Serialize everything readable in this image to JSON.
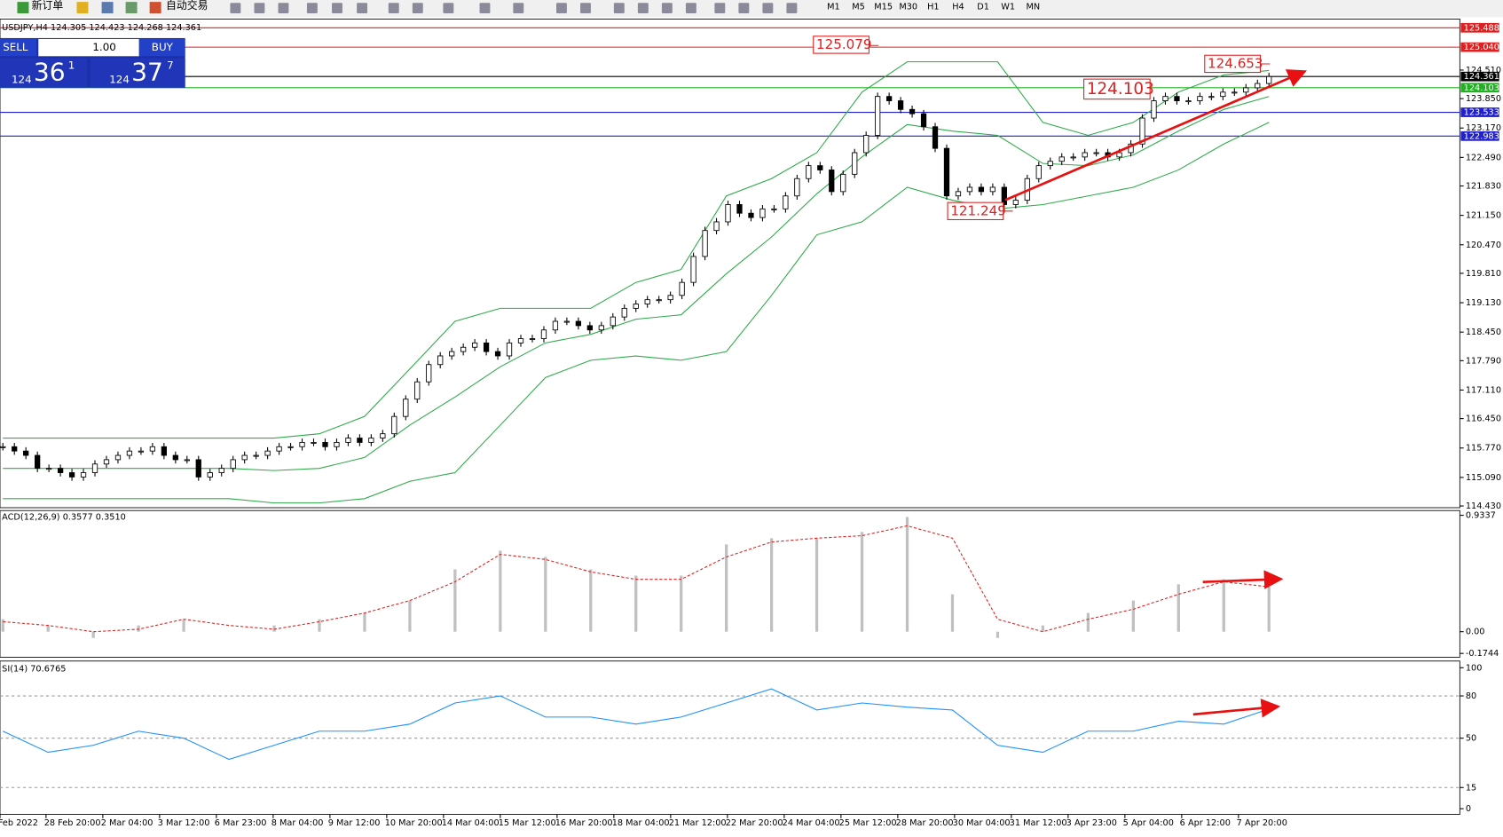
{
  "toolbar": {
    "new_order": "新订单",
    "auto_trading": "自动交易",
    "timeframes": [
      "M1",
      "M5",
      "M15",
      "M30",
      "H1",
      "H4",
      "D1",
      "W1",
      "MN"
    ]
  },
  "trade_panel": {
    "sell": "SELL",
    "buy": "BUY",
    "lots": "1.00",
    "bid": {
      "big": "124",
      "main": "36",
      "small": "1"
    },
    "ask": {
      "big": "124",
      "main": "37",
      "small": "7"
    }
  },
  "chart_data": [
    {
      "type": "candlestick",
      "title": "USDJPY,H4 124.305 124.423 124.268 124.361",
      "values": [
        115.8,
        115.7,
        115.6,
        115.3,
        115.3,
        115.2,
        115.1,
        115.2,
        115.4,
        115.5,
        115.6,
        115.7,
        115.7,
        115.8,
        115.6,
        115.5,
        115.5,
        115.1,
        115.2,
        115.3,
        115.5,
        115.6,
        115.6,
        115.7,
        115.8,
        115.8,
        115.9,
        115.9,
        115.8,
        115.9,
        116.0,
        115.9,
        116.0,
        116.1,
        116.5,
        116.9,
        117.3,
        117.7,
        117.9,
        118.0,
        118.1,
        118.2,
        118.0,
        117.9,
        118.2,
        118.3,
        118.3,
        118.5,
        118.7,
        118.7,
        118.6,
        118.5,
        118.6,
        118.8,
        119.0,
        119.1,
        119.2,
        119.2,
        119.3,
        119.6,
        120.2,
        120.8,
        121.0,
        121.4,
        121.2,
        121.1,
        121.3,
        121.3,
        121.6,
        122.0,
        122.3,
        122.2,
        121.7,
        122.1,
        122.6,
        123.0,
        123.9,
        123.8,
        123.6,
        123.5,
        123.2,
        122.7,
        121.6,
        121.7,
        121.8,
        121.7,
        121.8,
        121.4,
        121.5,
        122.0,
        122.3,
        122.4,
        122.5,
        122.5,
        122.6,
        122.6,
        122.5,
        122.6,
        122.8,
        123.4,
        123.8,
        123.9,
        123.8,
        123.8,
        123.9,
        123.9,
        124.0,
        124.0,
        124.1,
        124.2,
        124.361
      ],
      "bands": {
        "color": "#2eaa4a",
        "upper": [
          116.0,
          116.0,
          116.0,
          116.0,
          116.0,
          116.0,
          116.0,
          116.1,
          116.5,
          117.6,
          118.7,
          119.0,
          119.0,
          119.0,
          119.6,
          119.9,
          121.6,
          122.0,
          122.6,
          124.0,
          124.7,
          124.7,
          124.7,
          123.3,
          123.0,
          123.3,
          124.0,
          124.4,
          124.5
        ],
        "middle": [
          115.3,
          115.3,
          115.3,
          115.3,
          115.3,
          115.3,
          115.25,
          115.3,
          115.55,
          116.3,
          116.95,
          117.65,
          118.2,
          118.4,
          118.75,
          118.85,
          119.8,
          120.65,
          121.65,
          122.5,
          123.25,
          123.1,
          123.0,
          122.35,
          122.3,
          122.55,
          123.1,
          123.6,
          123.9
        ],
        "lower": [
          114.6,
          114.6,
          114.6,
          114.6,
          114.6,
          114.6,
          114.5,
          114.5,
          114.6,
          115.0,
          115.2,
          116.3,
          117.4,
          117.8,
          117.9,
          117.8,
          118.0,
          119.3,
          120.7,
          121.0,
          121.8,
          121.5,
          121.3,
          121.4,
          121.6,
          121.8,
          122.2,
          122.8,
          123.3
        ]
      },
      "ylim": [
        114.39,
        125.69
      ],
      "yticks": [
        {
          "value": 114.43,
          "label": "114.430"
        },
        {
          "value": 115.09,
          "label": "115.090"
        },
        {
          "value": 115.77,
          "label": "115.770"
        },
        {
          "value": 116.45,
          "label": "116.450"
        },
        {
          "value": 117.11,
          "label": "117.110"
        },
        {
          "value": 117.79,
          "label": "117.790"
        },
        {
          "value": 118.45,
          "label": "118.450"
        },
        {
          "value": 119.13,
          "label": "119.130"
        },
        {
          "value": 119.81,
          "label": "119.810"
        },
        {
          "value": 120.47,
          "label": "120.470"
        },
        {
          "value": 121.15,
          "label": "121.150"
        },
        {
          "value": 121.83,
          "label": "121.830"
        },
        {
          "value": 122.49,
          "label": "122.490"
        },
        {
          "value": 123.17,
          "label": "123.170"
        },
        {
          "value": 123.85,
          "label": "123.850"
        },
        {
          "value": 124.51,
          "label": "124.510"
        }
      ],
      "levels": [
        {
          "value": 125.488,
          "color": "#e02020"
        },
        {
          "value": {
            "value": 125.04,
            "label": "125.040"
          },
          "color": "#e02020"
        },
        {
          "value": 124.361,
          "color": "#000000"
        },
        {
          "value": 124.103,
          "color": "#20b020"
        },
        {
          "value": 123.533,
          "color": "#2020d0"
        },
        {
          "value": 122.983,
          "color": "#2020d0"
        }
      ],
      "annotations": [
        125.079,
        124.103,
        124.653,
        121.249
      ]
    },
    {
      "type": "macd",
      "title": "ACD(12,26,9) 0.3577 0.3510",
      "values": [
        0.1,
        0.05,
        -0.05,
        0.05,
        0.1,
        0.0,
        0.05,
        0.1,
        0.15,
        0.25,
        0.5,
        0.65,
        0.6,
        0.5,
        0.45,
        0.45,
        0.7,
        0.75,
        0.75,
        0.8,
        0.92,
        0.3,
        -0.05,
        0.05,
        0.15,
        0.25,
        0.38,
        0.42,
        0.36
      ],
      "signal": [
        0.08,
        0.05,
        0.0,
        0.02,
        0.1,
        0.05,
        0.02,
        0.08,
        0.15,
        0.25,
        0.4,
        0.62,
        0.58,
        0.48,
        0.42,
        0.42,
        0.6,
        0.72,
        0.75,
        0.77,
        0.85,
        0.75,
        0.1,
        0.0,
        0.1,
        0.18,
        0.3,
        0.4,
        0.36
      ],
      "color": "#c0c0c0",
      "signal_color": "#e02020",
      "ylim": [
        -0.1744,
        0.9337
      ],
      "yticks": [
        0.9337,
        {
          "value": 0,
          "label": "0.00"
        },
        -0.1744
      ]
    },
    {
      "type": "rsi",
      "title": "SI(14) 70.6765",
      "values": [
        55,
        40,
        45,
        55,
        50,
        35,
        45,
        55,
        55,
        60,
        75,
        80,
        65,
        65,
        60,
        65,
        75,
        85,
        70,
        75,
        72,
        70,
        45,
        40,
        55,
        55,
        62,
        60,
        70.6765
      ],
      "color": "#1e90ff",
      "ylim": [
        0,
        100
      ],
      "yticks": [
        100,
        80,
        50,
        15,
        0
      ],
      "grid_levels": [
        80,
        50,
        15
      ],
      "x_labels": [
        "Feb 2022",
        "28 Feb 20:00",
        "2 Mar 04:00",
        "3 Mar 12:00",
        "6 Mar 23:00",
        "8 Mar 04:00",
        "9 Mar 12:00",
        "10 Mar 20:00",
        "14 Mar 04:00",
        "15 Mar 12:00",
        "16 Mar 20:00",
        "18 Mar 04:00",
        "21 Mar 12:00",
        "22 Mar 20:00",
        "24 Mar 04:00",
        "25 Mar 12:00",
        "28 Mar 20:00",
        "30 Mar 04:00",
        "31 Mar 12:00",
        "3 Apr 23:00",
        "5 Apr 04:00",
        "6 Apr 12:00",
        "7 Apr 20:00"
      ]
    }
  ]
}
